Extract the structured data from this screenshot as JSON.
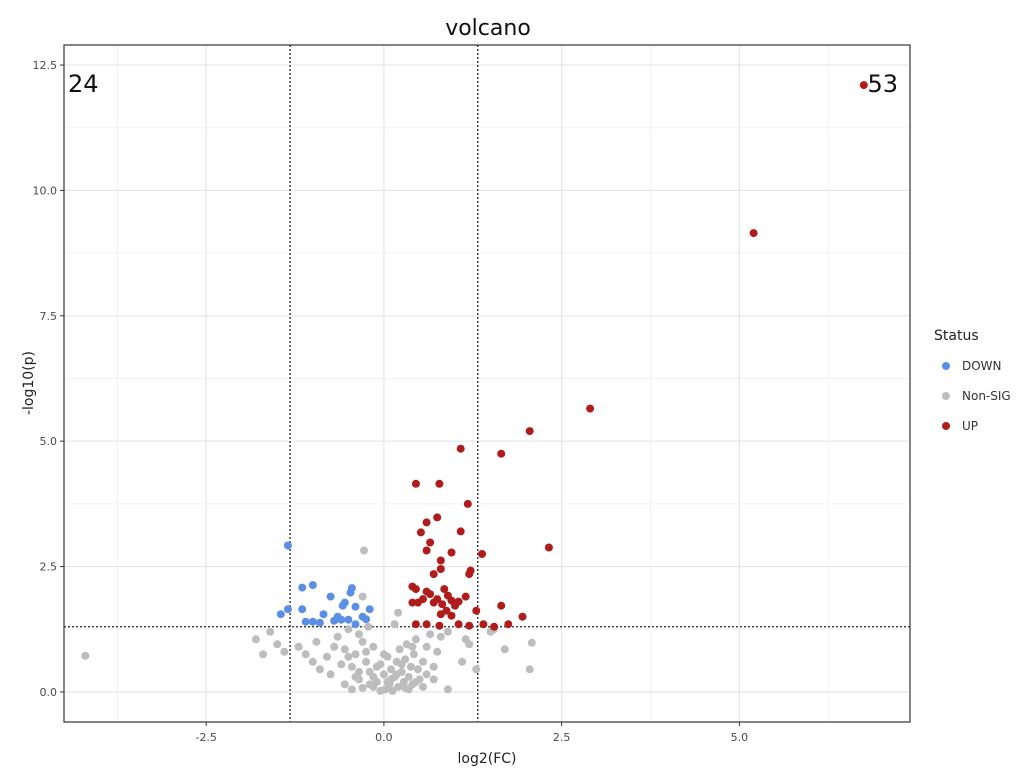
{
  "chart_data": {
    "type": "scatter",
    "title": "volcano",
    "xlabel": "log2(FC)",
    "ylabel": "-log10(p)",
    "xlim": [
      -4.5,
      7.4
    ],
    "ylim": [
      -0.6,
      12.9
    ],
    "xticks": [
      -2.5,
      0.0,
      2.5,
      5.0
    ],
    "xtick_labels": [
      "-2.5",
      "0.0",
      "2.5",
      "5.0"
    ],
    "yticks": [
      0.0,
      2.5,
      5.0,
      7.5,
      10.0,
      12.5
    ],
    "ytick_labels": [
      "0.0",
      "2.5",
      "5.0",
      "7.5",
      "10.0",
      "12.5"
    ],
    "minor_xticks": [
      -3.75,
      -1.25,
      1.25,
      3.75,
      6.25
    ],
    "minor_yticks": [
      1.25,
      3.75,
      6.25,
      8.75,
      11.25
    ],
    "grid": true,
    "thresholds": {
      "x": [
        -1.32,
        1.32
      ],
      "y": 1.3
    },
    "count_labels": {
      "down": "24",
      "up": "53"
    },
    "legend": {
      "title": "Status",
      "position": "right",
      "entries": [
        {
          "label": "DOWN",
          "color": "#5b8fe6"
        },
        {
          "label": "Non-SIG",
          "color": "#bdbdbd"
        },
        {
          "label": "UP",
          "color": "#b01c1c"
        }
      ]
    },
    "series": [
      {
        "name": "DOWN",
        "color": "#5b8fe6",
        "points": [
          [
            -1.35,
            2.92
          ],
          [
            -1.0,
            2.13
          ],
          [
            -1.15,
            2.08
          ],
          [
            -0.45,
            2.07
          ],
          [
            -0.47,
            1.98
          ],
          [
            -0.75,
            1.9
          ],
          [
            -0.55,
            1.78
          ],
          [
            -0.58,
            1.72
          ],
          [
            -0.4,
            1.7
          ],
          [
            -1.35,
            1.65
          ],
          [
            -1.15,
            1.65
          ],
          [
            -0.2,
            1.65
          ],
          [
            -1.45,
            1.55
          ],
          [
            -0.85,
            1.55
          ],
          [
            -0.65,
            1.5
          ],
          [
            -0.3,
            1.5
          ],
          [
            -0.25,
            1.45
          ],
          [
            -0.6,
            1.44
          ],
          [
            -0.5,
            1.44
          ],
          [
            -0.7,
            1.42
          ],
          [
            -1.1,
            1.4
          ],
          [
            -1.0,
            1.4
          ],
          [
            -0.9,
            1.38
          ],
          [
            -0.4,
            1.35
          ]
        ]
      },
      {
        "name": "Non-SIG",
        "color": "#bdbdbd",
        "points": [
          [
            -4.2,
            0.72
          ],
          [
            -1.8,
            1.05
          ],
          [
            -1.6,
            1.2
          ],
          [
            -1.5,
            0.95
          ],
          [
            -1.7,
            0.75
          ],
          [
            -1.4,
            0.8
          ],
          [
            -1.2,
            0.9
          ],
          [
            -1.1,
            0.75
          ],
          [
            -1.0,
            0.6
          ],
          [
            -0.95,
            1.0
          ],
          [
            -0.9,
            0.45
          ],
          [
            -0.8,
            0.7
          ],
          [
            -0.75,
            0.35
          ],
          [
            -0.7,
            0.9
          ],
          [
            -0.65,
            1.1
          ],
          [
            -0.6,
            0.55
          ],
          [
            -0.55,
            0.85
          ],
          [
            -0.5,
            1.25
          ],
          [
            -0.45,
            0.5
          ],
          [
            -0.4,
            0.75
          ],
          [
            -0.35,
            0.25
          ],
          [
            -0.3,
            1.0
          ],
          [
            -0.25,
            0.6
          ],
          [
            -0.2,
            0.4
          ],
          [
            -0.15,
            0.9
          ],
          [
            -0.1,
            0.2
          ],
          [
            -0.05,
            0.55
          ],
          [
            0.0,
            0.35
          ],
          [
            0.02,
            0.05
          ],
          [
            0.05,
            0.7
          ],
          [
            0.08,
            0.15
          ],
          [
            0.1,
            0.45
          ],
          [
            0.12,
            0.02
          ],
          [
            0.15,
            0.3
          ],
          [
            0.18,
            0.6
          ],
          [
            0.2,
            0.1
          ],
          [
            0.22,
            0.85
          ],
          [
            0.25,
            0.4
          ],
          [
            0.28,
            0.2
          ],
          [
            0.3,
            0.65
          ],
          [
            0.32,
            0.95
          ],
          [
            0.35,
            0.3
          ],
          [
            0.38,
            0.5
          ],
          [
            0.4,
            0.15
          ],
          [
            0.42,
            0.75
          ],
          [
            0.45,
            1.05
          ],
          [
            0.48,
            0.45
          ],
          [
            0.5,
            0.25
          ],
          [
            0.55,
            0.6
          ],
          [
            0.6,
            0.9
          ],
          [
            0.65,
            1.15
          ],
          [
            0.7,
            0.5
          ],
          [
            0.75,
            0.8
          ],
          [
            0.8,
            1.1
          ],
          [
            0.9,
            1.2
          ],
          [
            0.9,
            0.05
          ],
          [
            1.1,
            0.6
          ],
          [
            1.15,
            1.05
          ],
          [
            1.2,
            0.95
          ],
          [
            1.3,
            0.45
          ],
          [
            1.5,
            1.2
          ],
          [
            1.55,
            1.25
          ],
          [
            1.7,
            0.85
          ],
          [
            2.08,
            0.98
          ],
          [
            2.05,
            0.45
          ],
          [
            -0.28,
            2.82
          ],
          [
            -0.3,
            1.9
          ],
          [
            0.2,
            1.58
          ],
          [
            -0.22,
            1.3
          ],
          [
            0.15,
            1.35
          ],
          [
            -0.55,
            0.15
          ],
          [
            -0.45,
            0.05
          ],
          [
            -0.3,
            0.08
          ],
          [
            -0.15,
            0.1
          ],
          [
            -0.05,
            0.02
          ],
          [
            0.05,
            0.2
          ],
          [
            -0.35,
            0.4
          ],
          [
            -0.2,
            0.15
          ],
          [
            0.3,
            0.08
          ],
          [
            0.45,
            0.2
          ],
          [
            0.55,
            0.1
          ],
          [
            0.6,
            0.35
          ],
          [
            0.35,
            0.05
          ],
          [
            -0.1,
            0.5
          ],
          [
            0.1,
            0.25
          ],
          [
            -0.4,
            0.3
          ],
          [
            -0.25,
            0.8
          ],
          [
            0.0,
            0.75
          ],
          [
            0.25,
            0.55
          ],
          [
            -0.15,
            0.3
          ],
          [
            0.18,
            0.35
          ],
          [
            -0.5,
            0.7
          ],
          [
            0.4,
            0.9
          ],
          [
            -0.35,
            1.15
          ],
          [
            0.7,
            0.25
          ]
        ]
      },
      {
        "name": "UP",
        "color": "#b01c1c",
        "points": [
          [
            6.75,
            12.1
          ],
          [
            5.2,
            9.15
          ],
          [
            2.9,
            5.65
          ],
          [
            2.05,
            5.2
          ],
          [
            1.08,
            4.85
          ],
          [
            1.65,
            4.75
          ],
          [
            0.45,
            4.15
          ],
          [
            0.78,
            4.15
          ],
          [
            1.18,
            3.75
          ],
          [
            0.6,
            3.38
          ],
          [
            0.75,
            3.48
          ],
          [
            0.52,
            3.18
          ],
          [
            1.08,
            3.2
          ],
          [
            0.65,
            2.98
          ],
          [
            2.32,
            2.88
          ],
          [
            0.6,
            2.82
          ],
          [
            0.95,
            2.78
          ],
          [
            1.38,
            2.75
          ],
          [
            0.8,
            2.62
          ],
          [
            1.22,
            2.42
          ],
          [
            0.8,
            2.45
          ],
          [
            1.2,
            2.35
          ],
          [
            0.7,
            2.35
          ],
          [
            0.4,
            2.1
          ],
          [
            0.85,
            2.05
          ],
          [
            0.6,
            2.0
          ],
          [
            0.45,
            2.05
          ],
          [
            0.65,
            1.95
          ],
          [
            0.9,
            1.92
          ],
          [
            1.15,
            1.9
          ],
          [
            0.55,
            1.85
          ],
          [
            0.75,
            1.85
          ],
          [
            0.95,
            1.82
          ],
          [
            1.05,
            1.8
          ],
          [
            0.4,
            1.78
          ],
          [
            0.48,
            1.78
          ],
          [
            0.7,
            1.78
          ],
          [
            0.82,
            1.75
          ],
          [
            1.0,
            1.72
          ],
          [
            0.88,
            1.62
          ],
          [
            0.8,
            1.55
          ],
          [
            0.95,
            1.52
          ],
          [
            1.65,
            1.72
          ],
          [
            1.3,
            1.62
          ],
          [
            1.95,
            1.5
          ],
          [
            0.45,
            1.35
          ],
          [
            0.6,
            1.35
          ],
          [
            1.05,
            1.35
          ],
          [
            1.4,
            1.35
          ],
          [
            1.55,
            1.3
          ],
          [
            1.75,
            1.35
          ],
          [
            0.78,
            1.32
          ],
          [
            1.2,
            1.32
          ]
        ]
      }
    ]
  }
}
